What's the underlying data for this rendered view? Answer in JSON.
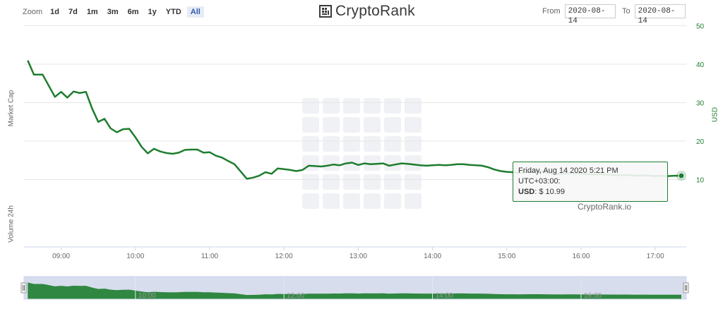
{
  "toolbar": {
    "zoom_label": "Zoom",
    "zoom_buttons": [
      "1d",
      "7d",
      "1m",
      "3m",
      "6m",
      "1y",
      "YTD",
      "All"
    ],
    "active_zoom": "All"
  },
  "logo": {
    "text": "CryptoRank"
  },
  "date_range": {
    "from_label": "From",
    "from_value": "2020-08-14",
    "to_label": "To",
    "to_value": "2020-08-14"
  },
  "tooltip": {
    "header": "Friday, Aug 14 2020 5:21 PM UTC+03:00:",
    "series_label": "USD",
    "value_text": ": $ 10.99"
  },
  "credit": "CryptoRank.io",
  "colors": {
    "line": "#1e7d2e",
    "navigator_fill": "#1e7d2e",
    "navigator_bg": "#cdd4e8",
    "grid": "#e6e6e6"
  },
  "chart_data": {
    "type": "line",
    "series": [
      {
        "name": "USD",
        "x": [
          "08:33",
          "08:38",
          "08:45",
          "08:49",
          "08:55",
          "09:00",
          "09:05",
          "09:10",
          "09:15",
          "09:20",
          "09:25",
          "09:30",
          "09:35",
          "09:40",
          "09:45",
          "09:50",
          "09:55",
          "10:00",
          "10:05",
          "10:10",
          "10:15",
          "10:20",
          "10:25",
          "10:30",
          "10:35",
          "10:40",
          "10:45",
          "10:50",
          "10:55",
          "11:00",
          "11:05",
          "11:10",
          "11:15",
          "11:20",
          "11:25",
          "11:30",
          "11:35",
          "11:40",
          "11:45",
          "11:50",
          "11:55",
          "12:00",
          "12:05",
          "12:10",
          "12:15",
          "12:20",
          "12:25",
          "12:30",
          "12:35",
          "12:40",
          "12:45",
          "12:50",
          "12:55",
          "13:00",
          "13:05",
          "13:10",
          "13:15",
          "13:20",
          "13:25",
          "13:30",
          "13:35",
          "13:40",
          "13:45",
          "13:50",
          "13:55",
          "14:00",
          "14:05",
          "14:10",
          "14:15",
          "14:20",
          "14:25",
          "14:30",
          "14:35",
          "14:40",
          "14:45",
          "14:50",
          "14:55",
          "15:00",
          "15:05",
          "15:10",
          "15:15",
          "15:20",
          "15:25",
          "15:30",
          "15:35",
          "15:40",
          "15:45",
          "15:50",
          "15:55",
          "16:00",
          "16:05",
          "16:10",
          "16:15",
          "16:20",
          "16:25",
          "16:30",
          "16:35",
          "16:40",
          "16:45",
          "16:50",
          "16:55",
          "17:00",
          "17:05",
          "17:10",
          "17:15",
          "17:21"
        ],
        "values": [
          41.0,
          37.3,
          37.3,
          35.0,
          31.5,
          32.8,
          31.3,
          32.9,
          32.5,
          32.8,
          28.5,
          25.0,
          25.8,
          23.3,
          22.3,
          23.1,
          23.2,
          21.0,
          18.5,
          16.8,
          18.0,
          17.3,
          16.9,
          16.7,
          17.0,
          17.7,
          17.8,
          17.8,
          17.0,
          17.1,
          16.2,
          15.7,
          14.8,
          14.0,
          12.1,
          10.2,
          10.5,
          11.0,
          11.9,
          11.5,
          12.9,
          12.7,
          12.5,
          12.2,
          12.5,
          13.6,
          13.5,
          13.4,
          13.6,
          13.9,
          13.7,
          14.2,
          14.4,
          13.8,
          14.2,
          14.0,
          14.1,
          14.2,
          13.6,
          13.9,
          14.2,
          14.1,
          13.9,
          13.7,
          13.6,
          13.7,
          13.8,
          13.7,
          13.8,
          14.0,
          14.0,
          13.8,
          13.7,
          13.6,
          13.2,
          12.6,
          12.2,
          12.0,
          11.9,
          11.8,
          11.9,
          12.1,
          12.2,
          12.0,
          11.6,
          11.4,
          11.5,
          11.7,
          11.6,
          11.5,
          11.4,
          11.3,
          11.4,
          11.3,
          11.2,
          11.1,
          11.2,
          11.1,
          11.0,
          11.1,
          11.0,
          10.9,
          11.0,
          10.9,
          11.0,
          10.99
        ]
      }
    ],
    "xlabel": "",
    "ylabel_right": "USD",
    "ylabel_left_top": "Market Cap",
    "ylabel_left_bottom": "Volume 24h",
    "x_ticks": [
      "09:00",
      "10:00",
      "11:00",
      "12:00",
      "13:00",
      "14:00",
      "15:00",
      "16:00",
      "17:00"
    ],
    "navigator_ticks": [
      "10:00",
      "12:00",
      "14:00",
      "16:00"
    ],
    "y_ticks": [
      10,
      20,
      30,
      40,
      50
    ],
    "xlim": [
      "08:30",
      "17:25"
    ],
    "ylim": [
      0,
      50
    ],
    "grid": true
  }
}
